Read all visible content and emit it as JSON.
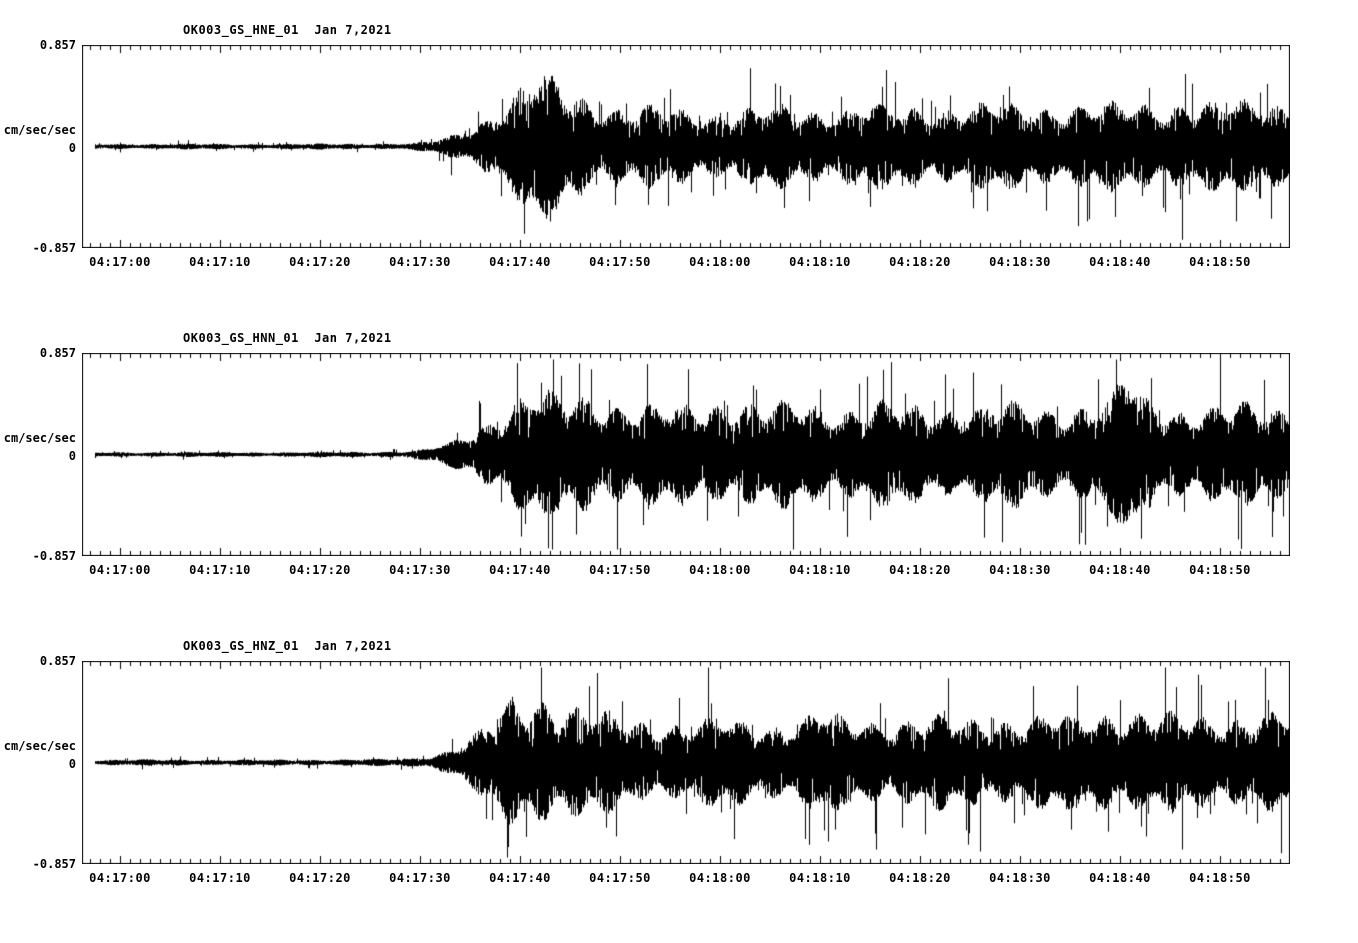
{
  "page": {
    "background_color": "#ffffff",
    "trace_color": "#000000",
    "station": "OK003",
    "date": "Jan 7,2021"
  },
  "chart_data": [
    {
      "type": "line",
      "title": "OK003_GS_HNE_01  Jan 7,2021",
      "ylabel": "cm/sec/sec",
      "y_top_label": "0.857",
      "y_zero_label": "0",
      "y_bottom_label": "-0.857",
      "ylim": [
        -0.857,
        0.857
      ],
      "x_tick_labels": [
        "04:17:00",
        "04:17:10",
        "04:17:20",
        "04:17:30",
        "04:17:40",
        "04:17:50",
        "04:18:00",
        "04:18:10",
        "04:18:20",
        "04:18:30",
        "04:18:40",
        "04:18:50"
      ],
      "time_span_seconds": 120.8,
      "first_tick_offset_seconds": 3.8,
      "major_tick_interval_seconds": 10,
      "minor_tick_interval_seconds": 1,
      "trace_color": "#000000",
      "grid": false,
      "legend": false,
      "seed": 7,
      "envelope": {
        "t": [
          1.3,
          8,
          16,
          24,
          30,
          33,
          35,
          37,
          39,
          41,
          43,
          45,
          47,
          49,
          52,
          55,
          58,
          62,
          66,
          70,
          74,
          78,
          82,
          86,
          90,
          94,
          98,
          102,
          106,
          110,
          114,
          118,
          120.8
        ],
        "a": [
          0.018,
          0.02,
          0.018,
          0.02,
          0.02,
          0.024,
          0.04,
          0.08,
          0.14,
          0.24,
          0.36,
          0.5,
          0.48,
          0.4,
          0.3,
          0.26,
          0.28,
          0.24,
          0.26,
          0.28,
          0.26,
          0.3,
          0.27,
          0.28,
          0.3,
          0.28,
          0.3,
          0.29,
          0.3,
          0.32,
          0.3,
          0.33,
          0.32
        ]
      }
    },
    {
      "type": "line",
      "title": "OK003_GS_HNN_01  Jan 7,2021",
      "ylabel": "cm/sec/sec",
      "y_top_label": "0.857",
      "y_zero_label": "0",
      "y_bottom_label": "-0.857",
      "ylim": [
        -0.857,
        0.857
      ],
      "x_tick_labels": [
        "04:17:00",
        "04:17:10",
        "04:17:20",
        "04:17:30",
        "04:17:40",
        "04:17:50",
        "04:18:00",
        "04:18:10",
        "04:18:20",
        "04:18:30",
        "04:18:40",
        "04:18:50"
      ],
      "time_span_seconds": 120.8,
      "first_tick_offset_seconds": 3.8,
      "major_tick_interval_seconds": 10,
      "minor_tick_interval_seconds": 1,
      "trace_color": "#000000",
      "grid": false,
      "legend": false,
      "seed": 13,
      "envelope": {
        "t": [
          1.3,
          8,
          16,
          24,
          30,
          33,
          35,
          37,
          39,
          41,
          43,
          45,
          48,
          51,
          54,
          58,
          62,
          65,
          68,
          72,
          76,
          80,
          84,
          88,
          92,
          96,
          100,
          103,
          104.5,
          106,
          109,
          112,
          116,
          120.8
        ],
        "a": [
          0.015,
          0.017,
          0.016,
          0.018,
          0.02,
          0.025,
          0.05,
          0.09,
          0.16,
          0.27,
          0.38,
          0.45,
          0.4,
          0.42,
          0.36,
          0.33,
          0.36,
          0.4,
          0.34,
          0.37,
          0.33,
          0.36,
          0.33,
          0.35,
          0.36,
          0.33,
          0.35,
          0.4,
          0.62,
          0.4,
          0.34,
          0.33,
          0.35,
          0.33
        ]
      }
    },
    {
      "type": "line",
      "title": "OK003_GS_HNZ_01  Jan 7,2021",
      "ylabel": "cm/sec/sec",
      "y_top_label": "0.857",
      "y_zero_label": "0",
      "y_bottom_label": "-0.857",
      "ylim": [
        -0.857,
        0.857
      ],
      "x_tick_labels": [
        "04:17:00",
        "04:17:10",
        "04:17:20",
        "04:17:30",
        "04:17:40",
        "04:17:50",
        "04:18:00",
        "04:18:10",
        "04:18:20",
        "04:18:30",
        "04:18:40",
        "04:18:50"
      ],
      "time_span_seconds": 120.8,
      "first_tick_offset_seconds": 3.8,
      "major_tick_interval_seconds": 10,
      "minor_tick_interval_seconds": 1,
      "trace_color": "#000000",
      "grid": false,
      "legend": false,
      "seed": 21,
      "envelope": {
        "t": [
          1.3,
          8,
          16,
          24,
          30,
          33,
          35,
          37,
          39,
          41,
          43,
          46,
          49,
          52,
          56,
          60,
          64,
          68,
          72,
          74,
          76,
          80,
          84,
          88,
          92,
          96,
          100,
          103,
          106,
          110,
          114,
          118,
          120.8
        ],
        "a": [
          0.02,
          0.022,
          0.02,
          0.022,
          0.024,
          0.03,
          0.05,
          0.1,
          0.18,
          0.3,
          0.44,
          0.48,
          0.4,
          0.34,
          0.3,
          0.28,
          0.3,
          0.28,
          0.3,
          0.38,
          0.3,
          0.3,
          0.32,
          0.3,
          0.32,
          0.33,
          0.32,
          0.38,
          0.36,
          0.32,
          0.33,
          0.35,
          0.33
        ]
      }
    }
  ]
}
